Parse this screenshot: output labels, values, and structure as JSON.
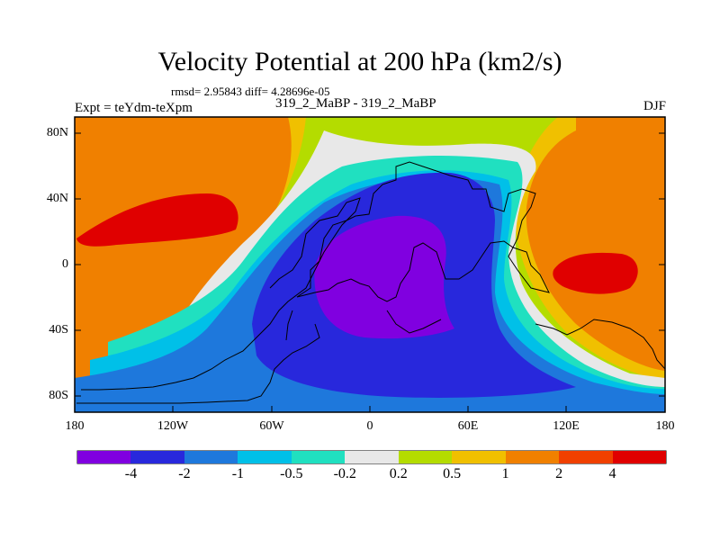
{
  "header": {
    "title": "Velocity Potential at 200 hPa (km2/s)",
    "stats": "rmsd= 2.95843 diff= 4.28696e-05",
    "expt": "Expt = teYdm-teXpm",
    "cases": "319_2_MaBP - 319_2_MaBP",
    "season": "DJF"
  },
  "axes": {
    "lat_ticks": [
      "80N",
      "40N",
      "0",
      "40S",
      "80S"
    ],
    "lon_ticks": [
      "180",
      "120W",
      "60W",
      "0",
      "60E",
      "120E",
      "180"
    ]
  },
  "colorbar": {
    "labels": [
      "-4",
      "-2",
      "-1",
      "-0.5",
      "-0.2",
      "0.2",
      "0.5",
      "1",
      "2",
      "4"
    ],
    "colors": [
      "#8000e0",
      "#2828dc",
      "#1e78dc",
      "#00c0e8",
      "#20e0c0",
      "#e8e8e8",
      "#b4dc00",
      "#f0c000",
      "#f08000",
      "#f04000",
      "#e00000"
    ]
  },
  "map_colors": {
    "violet": "#8000e0",
    "blue": "#2828dc",
    "midblue": "#1e78dc",
    "cyan": "#00c0e8",
    "teal": "#20e0c0",
    "white": "#e8e8e8",
    "yellowgreen": "#b4dc00",
    "yellow": "#f0c000",
    "orange": "#f08000",
    "redorange": "#f04000",
    "red": "#e00000"
  }
}
